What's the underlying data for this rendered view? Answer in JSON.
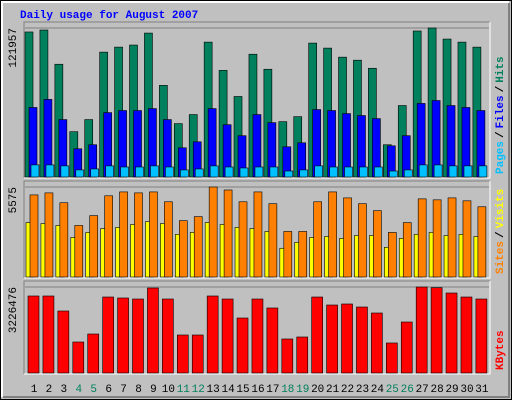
{
  "chart_data": [
    {
      "type": "bar",
      "title": "Daily usage for August 2007",
      "series": [
        {
          "name": "Hits",
          "color": "#00805c",
          "values": [
            118700,
            120300,
            92300,
            37100,
            47000,
            102200,
            106300,
            108000,
            117800,
            75000,
            43700,
            51100,
            110400,
            87300,
            65900,
            100500,
            88200,
            45300,
            49400,
            109600,
            105500,
            98100,
            95600,
            89000,
            26400,
            58500,
            119500,
            121957,
            112900,
            110400,
            106300
          ]
        },
        {
          "name": "Files",
          "color": "#0000ff",
          "values": [
            56900,
            63500,
            47000,
            23100,
            26400,
            52700,
            54400,
            54400,
            56000,
            47000,
            23900,
            28800,
            56000,
            42800,
            33800,
            51100,
            44500,
            24700,
            28000,
            55200,
            54400,
            51900,
            50300,
            47800,
            25500,
            33800,
            60200,
            62600,
            58500,
            56900,
            54400
          ]
        },
        {
          "name": "Pages",
          "color": "#00c0ff",
          "values": [
            9900,
            9900,
            9100,
            5800,
            6600,
            9100,
            8200,
            8200,
            9100,
            8200,
            5800,
            6600,
            9100,
            8200,
            7400,
            8200,
            8200,
            4900,
            5800,
            9100,
            8200,
            8200,
            8200,
            8200,
            4900,
            5800,
            9900,
            9900,
            9100,
            9100,
            9100
          ]
        }
      ],
      "ylim": [
        0,
        121957
      ],
      "yticks": [
        121957
      ]
    },
    {
      "type": "bar",
      "series": [
        {
          "name": "Visits",
          "color": "#ffff00",
          "values": [
            3370,
            3310,
            3190,
            2450,
            2760,
            3000,
            3070,
            3250,
            3430,
            3310,
            2640,
            2760,
            3370,
            3250,
            3070,
            3000,
            2820,
            1780,
            2150,
            2450,
            2510,
            2390,
            2570,
            2570,
            1840,
            2390,
            2640,
            2760,
            2570,
            2640,
            2510
          ]
        },
        {
          "name": "Sites",
          "color": "#ff8000",
          "values": [
            5085,
            5210,
            4600,
            3190,
            3800,
            5030,
            5270,
            5210,
            5270,
            4660,
            3490,
            3740,
            5575,
            5390,
            4660,
            5270,
            4540,
            2820,
            2820,
            4660,
            5270,
            4900,
            4540,
            4110,
            2760,
            3370,
            4840,
            4780,
            4900,
            4720,
            4350
          ]
        }
      ],
      "ylim": [
        0,
        5575
      ],
      "yticks": [
        5575
      ]
    },
    {
      "type": "bar",
      "categories": [
        "1",
        "2",
        "3",
        "4",
        "5",
        "6",
        "7",
        "8",
        "9",
        "10",
        "11",
        "12",
        "13",
        "14",
        "15",
        "16",
        "17",
        "18",
        "19",
        "20",
        "21",
        "22",
        "23",
        "24",
        "25",
        "26",
        "27",
        "28",
        "29",
        "30",
        "31"
      ],
      "category_colors": [
        "#000000",
        "#000000",
        "#000000",
        "#00805c",
        "#00805c",
        "#000000",
        "#000000",
        "#000000",
        "#000000",
        "#000000",
        "#00805c",
        "#00805c",
        "#000000",
        "#000000",
        "#000000",
        "#000000",
        "#000000",
        "#00805c",
        "#00805c",
        "#000000",
        "#000000",
        "#000000",
        "#000000",
        "#000000",
        "#00805c",
        "#00805c",
        "#000000",
        "#000000",
        "#000000",
        "#000000",
        "#000000"
      ],
      "series": [
        {
          "name": "KBytes",
          "color": "#ff0000",
          "values": [
            2889000,
            2889000,
            2326000,
            1163000,
            1463000,
            2851000,
            2814000,
            2776000,
            3189000,
            2776000,
            1426000,
            1426000,
            2889000,
            2776000,
            2063000,
            2776000,
            2439000,
            1276000,
            1351000,
            2851000,
            2551000,
            2589000,
            2476000,
            2251000,
            1126000,
            1913000,
            3226476,
            3200000,
            3001000,
            2851000,
            2776000
          ]
        }
      ],
      "ylim": [
        0,
        3226476
      ],
      "yticks": [
        3226476
      ]
    }
  ],
  "legend_separator": "/"
}
